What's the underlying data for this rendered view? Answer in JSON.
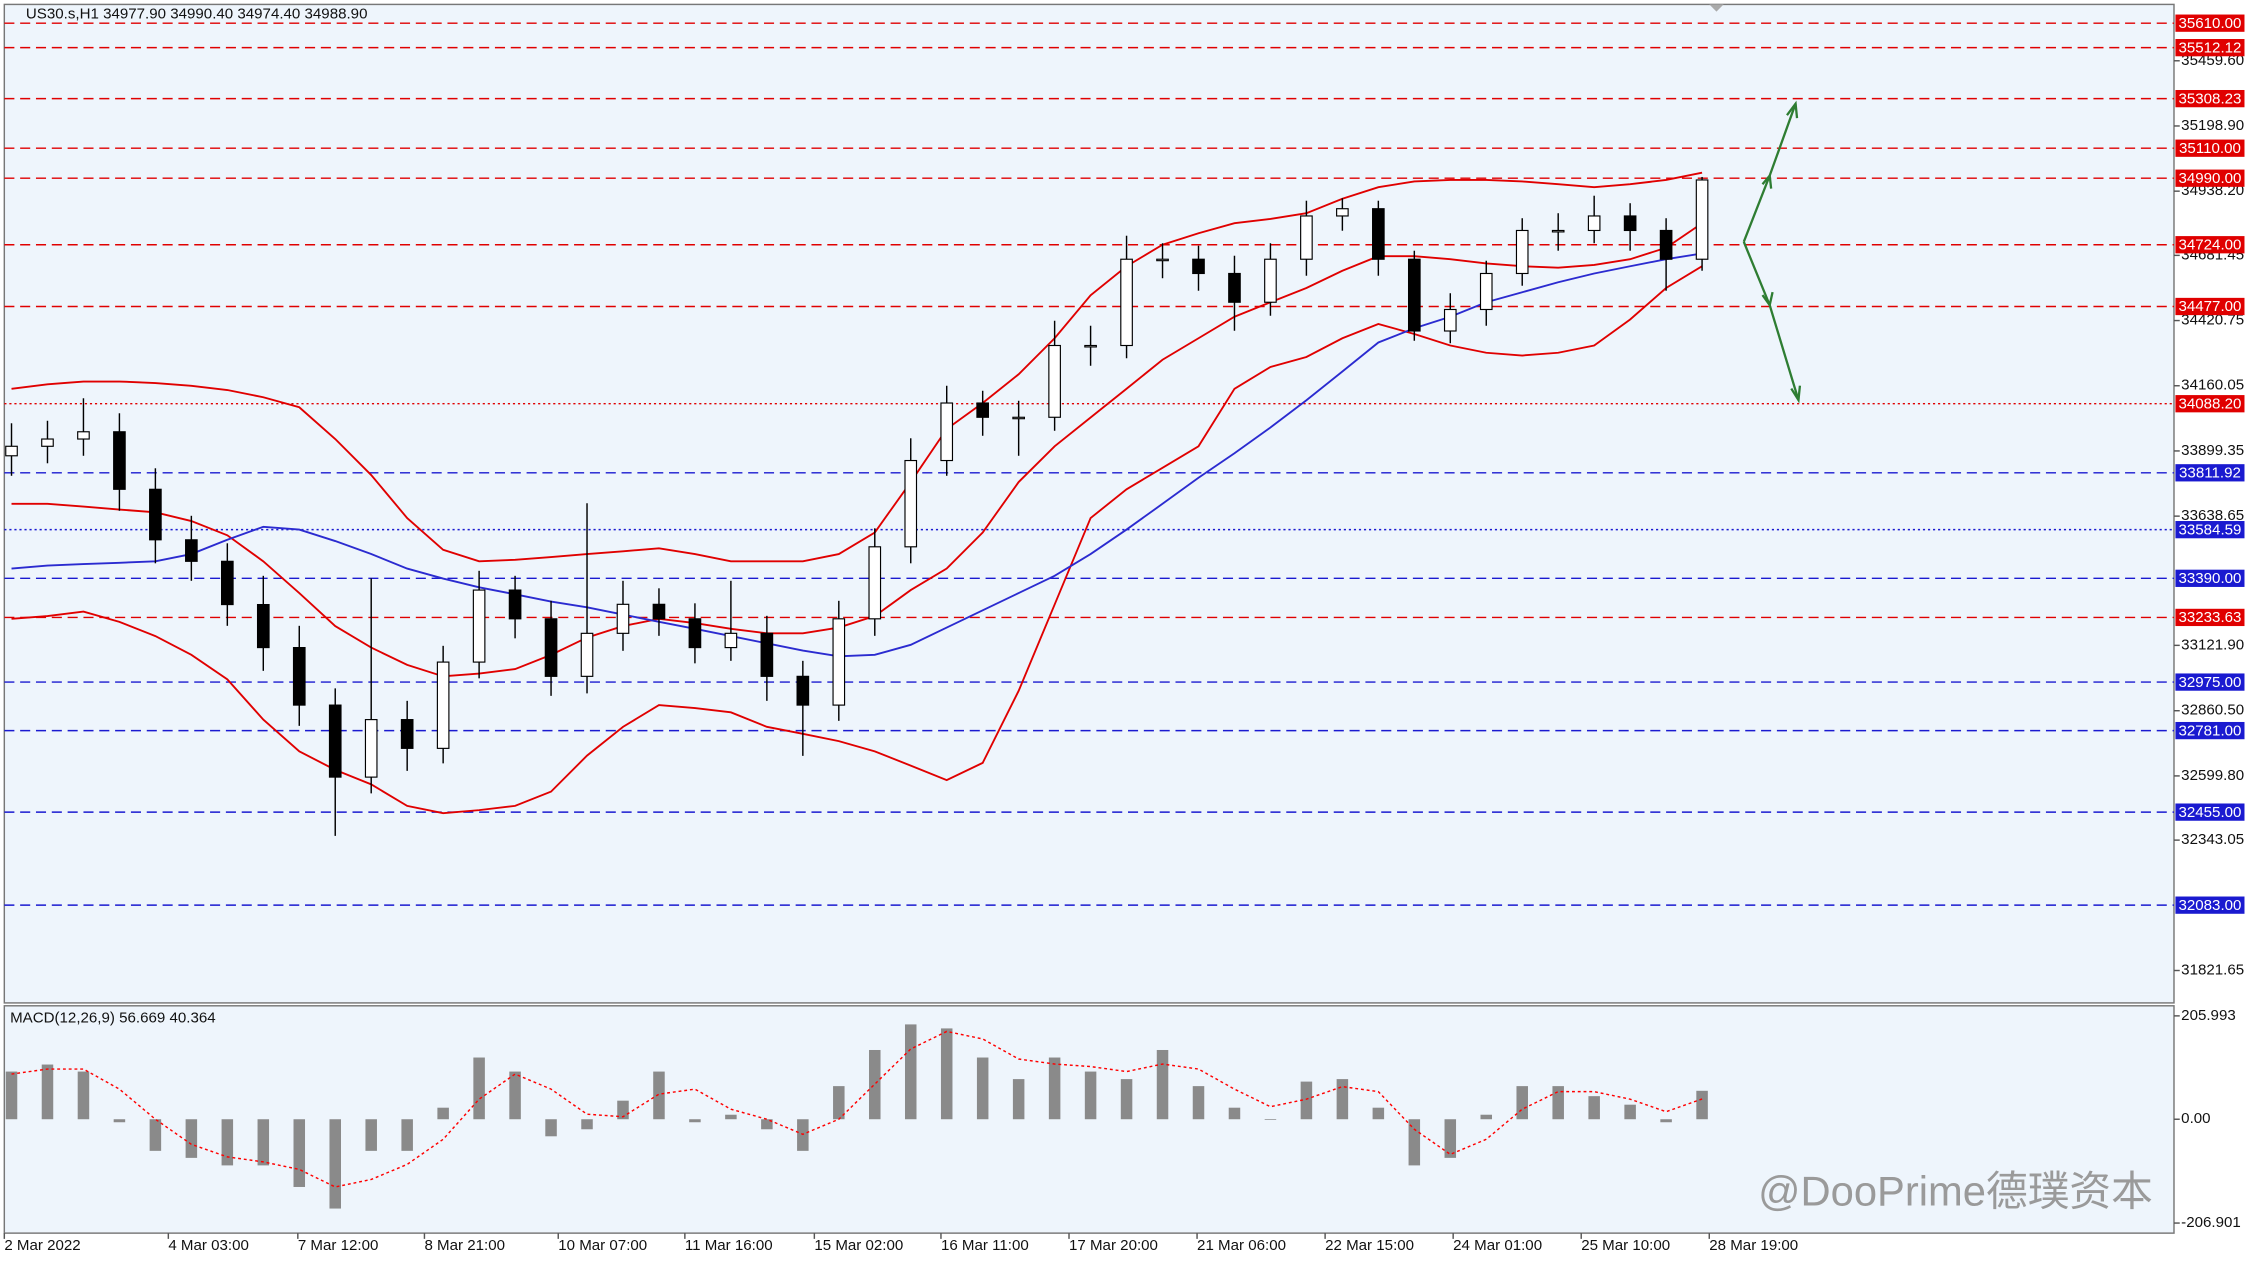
{
  "chart_data": [
    {
      "type": "candlestick",
      "title": "US30.s,H1  34977.90 34990.40 34974.40 34988.90",
      "open": [
        33880,
        33918,
        33947,
        33976,
        33746,
        33544,
        33458,
        33285,
        33113,
        32883,
        32595,
        32825,
        32710,
        33055,
        33343,
        33228,
        32998,
        33170,
        33286,
        33228,
        33113,
        33170,
        32998,
        32883,
        33228,
        33516,
        33861,
        34091,
        34034,
        34034,
        34321,
        34321,
        34666,
        34666,
        34609,
        34494,
        34666,
        34839,
        34868,
        34666,
        34379,
        34465,
        34609,
        34781,
        34781,
        34839,
        34781,
        34666
      ],
      "high": [
        34010,
        34020,
        34110,
        34050,
        33830,
        33640,
        33530,
        33400,
        33200,
        32950,
        33390,
        32900,
        33120,
        33420,
        33400,
        33300,
        33690,
        33380,
        33350,
        33290,
        33380,
        33240,
        33060,
        33300,
        33590,
        33950,
        34160,
        34140,
        34100,
        34420,
        34400,
        34760,
        34730,
        34720,
        34680,
        34730,
        34900,
        34910,
        34900,
        34700,
        34530,
        34660,
        34830,
        34850,
        34920,
        34890,
        34830,
        34995
      ],
      "low": [
        33800,
        33850,
        33880,
        33660,
        33450,
        33380,
        33200,
        33020,
        32800,
        32360,
        32530,
        32620,
        32650,
        32990,
        33150,
        32920,
        32930,
        33100,
        33160,
        33050,
        33060,
        32900,
        32680,
        32820,
        33160,
        33450,
        33800,
        33960,
        33880,
        33980,
        34240,
        34270,
        34590,
        34540,
        34380,
        34440,
        34600,
        34780,
        34600,
        34340,
        34330,
        34400,
        34560,
        34700,
        34730,
        34700,
        34540,
        34620
      ],
      "close": [
        33918,
        33947,
        33976,
        33746,
        33544,
        33458,
        33285,
        33113,
        32883,
        32595,
        32825,
        32710,
        33055,
        33343,
        33228,
        32998,
        33170,
        33286,
        33228,
        33113,
        33170,
        32998,
        32883,
        33228,
        33516,
        33861,
        34091,
        34034,
        34034,
        34321,
        34321,
        34666,
        34666,
        34609,
        34494,
        34666,
        34839,
        34868,
        34666,
        34379,
        34465,
        34609,
        34781,
        34781,
        34839,
        34781,
        34666,
        34983
      ],
      "up_color": "#ffffff",
      "down_color": "#000000",
      "series": [
        {
          "color": "#e00000",
          "values": [
            34148,
            34166,
            34177,
            34177,
            34171,
            34160,
            34143,
            34114,
            34074,
            33947,
            33803,
            33631,
            33504,
            33458,
            33464,
            33475,
            33487,
            33498,
            33510,
            33487,
            33458,
            33458,
            33458,
            33487,
            33573,
            33775,
            33987,
            34091,
            34206,
            34350,
            34522,
            34638,
            34724,
            34770,
            34810,
            34827,
            34850,
            34908,
            34954,
            34977,
            34983,
            34983,
            34977,
            34966,
            34954,
            34966,
            34983,
            35012
          ]
        },
        {
          "color": "#e00000",
          "values": [
            33688,
            33688,
            33677,
            33665,
            33654,
            33619,
            33562,
            33458,
            33331,
            33199,
            33113,
            33044,
            32998,
            33009,
            33027,
            33084,
            33153,
            33199,
            33228,
            33211,
            33188,
            33170,
            33170,
            33193,
            33239,
            33343,
            33429,
            33573,
            33775,
            33918,
            34033,
            34148,
            34264,
            34350,
            34436,
            34494,
            34551,
            34620,
            34678,
            34678,
            34666,
            34649,
            34638,
            34632,
            34643,
            34666,
            34712,
            34810
          ]
        },
        {
          "color": "#e00000",
          "values": [
            33228,
            33239,
            33257,
            33216,
            33159,
            33084,
            32986,
            32825,
            32698,
            32624,
            32566,
            32480,
            32451,
            32463,
            32480,
            32537,
            32681,
            32796,
            32883,
            32871,
            32854,
            32796,
            32768,
            32739,
            32698,
            32641,
            32583,
            32652,
            32940,
            33285,
            33631,
            33746,
            33832,
            33918,
            34148,
            34235,
            34275,
            34350,
            34407,
            34367,
            34321,
            34292,
            34281,
            34292,
            34321,
            34425,
            34551,
            34638
          ]
        },
        {
          "color": "#2b2bd0",
          "values": [
            33429,
            33441,
            33447,
            33452,
            33458,
            33487,
            33544,
            33596,
            33585,
            33539,
            33487,
            33429,
            33389,
            33354,
            33326,
            33297,
            33274,
            33245,
            33216,
            33188,
            33159,
            33130,
            33101,
            33078,
            33084,
            33124,
            33193,
            33262,
            33331,
            33400,
            33487,
            33585,
            33688,
            33792,
            33890,
            33993,
            34102,
            34217,
            34333,
            34390,
            34436,
            34494,
            34534,
            34574,
            34609,
            34638,
            34666,
            34689
          ]
        }
      ],
      "ylim": [
        31692,
        35685
      ],
      "yticks": [
        {
          "value": 35459.6,
          "label": "35459.60"
        },
        {
          "value": 35198.9,
          "label": "35198.90"
        },
        {
          "value": 34938.2,
          "label": "34938.20"
        },
        {
          "value": 34681.45,
          "label": "34681.45"
        },
        {
          "value": 34420.75,
          "label": "34420.75"
        },
        {
          "value": 34160.05,
          "label": "34160.05"
        },
        {
          "value": 33899.35,
          "label": "33899.35"
        },
        {
          "value": 33638.65,
          "label": "33638.65"
        },
        {
          "value": 33121.9,
          "label": "33121.90"
        },
        {
          "value": 32860.5,
          "label": "32860.50"
        },
        {
          "value": 32599.8,
          "label": "32599.80"
        },
        {
          "value": 32343.05,
          "label": "32343.05"
        },
        {
          "value": 31821.65,
          "label": "31821.65"
        }
      ],
      "xlim": [
        -0.2,
        60.12
      ],
      "xticks": [
        {
          "value": -0.2,
          "label": "2 Mar 2022"
        },
        {
          "value": 4.36,
          "label": "4 Mar 03:00"
        },
        {
          "value": 7.96,
          "label": "7 Mar 12:00"
        },
        {
          "value": 11.48,
          "label": "8 Mar 21:00"
        },
        {
          "value": 15.2,
          "label": "10 Mar 07:00"
        },
        {
          "value": 18.72,
          "label": "11 Mar 16:00"
        },
        {
          "value": 22.32,
          "label": "15 Mar 02:00"
        },
        {
          "value": 25.84,
          "label": "16 Mar 11:00"
        },
        {
          "value": 29.4,
          "label": "17 Mar 20:00"
        },
        {
          "value": 32.96,
          "label": "21 Mar 06:00"
        },
        {
          "value": 36.52,
          "label": "22 Mar 15:00"
        },
        {
          "value": 40.08,
          "label": "24 Mar 01:00"
        },
        {
          "value": 43.64,
          "label": "25 Mar 10:00"
        },
        {
          "value": 47.2,
          "label": "28 Mar 19:00"
        }
      ],
      "levels": [
        {
          "value": 35610,
          "label": "35610.00",
          "color": "#e00000",
          "style": "dashed"
        },
        {
          "value": 35512.12,
          "label": "35512.12",
          "color": "#e00000",
          "style": "dashed"
        },
        {
          "value": 35308.23,
          "label": "35308.23",
          "color": "#e00000",
          "style": "dashed"
        },
        {
          "value": 35110,
          "label": "35110.00",
          "color": "#e00000",
          "style": "dashed"
        },
        {
          "value": 34990,
          "label": "34990.00",
          "color": "#e00000",
          "style": "dashed"
        },
        {
          "value": 34724,
          "label": "34724.00",
          "color": "#e00000",
          "style": "dashed"
        },
        {
          "value": 34477,
          "label": "34477.00",
          "color": "#e00000",
          "style": "dashed"
        },
        {
          "value": 34088.2,
          "label": "34088.20",
          "color": "#e00000",
          "style": "dotted"
        },
        {
          "value": 33811.92,
          "label": "33811.92",
          "color": "#1a1ad0",
          "style": "dashed"
        },
        {
          "value": 33584.59,
          "label": "33584.59",
          "color": "#1a1ad0",
          "style": "dotted"
        },
        {
          "value": 33390,
          "label": "33390.00",
          "color": "#1a1ad0",
          "style": "dashed"
        },
        {
          "value": 33233.63,
          "label": "33233.63",
          "color": "#e00000",
          "style": "dashed"
        },
        {
          "value": 32975,
          "label": "32975.00",
          "color": "#1a1ad0",
          "style": "dashed"
        },
        {
          "value": 32781,
          "label": "32781.00",
          "color": "#1a1ad0",
          "style": "dashed"
        },
        {
          "value": 32455,
          "label": "32455.00",
          "color": "#1a1ad0",
          "style": "dashed"
        },
        {
          "value": 32083,
          "label": "32083.00",
          "color": "#1a1ad0",
          "style": "dashed"
        }
      ],
      "watermark": "@DooPrime德璞资本"
    },
    {
      "type": "bar",
      "title": "MACD(12,26,9) 56.669 40.364",
      "color": "#8a8a8a",
      "values": [
        95,
        109,
        95,
        -6,
        -63,
        -77,
        -92,
        -92,
        -135,
        -178,
        -63,
        -63,
        23,
        123,
        95,
        -34,
        -20,
        37,
        95,
        -6,
        9,
        -20,
        -63,
        66,
        138,
        189,
        181,
        123,
        80,
        123,
        95,
        80,
        138,
        66,
        23,
        0,
        75,
        80,
        23,
        -92,
        -77,
        9,
        66,
        66,
        46,
        29,
        -6,
        56.669
      ],
      "series": [
        {
          "color": "#ff0000",
          "values": [
            90,
            100,
            100,
            60,
            0,
            -50,
            -75,
            -85,
            -100,
            -135,
            -120,
            -90,
            -40,
            40,
            90,
            60,
            10,
            5,
            50,
            60,
            20,
            0,
            -30,
            0,
            70,
            140,
            175,
            160,
            120,
            110,
            105,
            95,
            110,
            100,
            60,
            25,
            40,
            65,
            55,
            -20,
            -70,
            -40,
            20,
            55,
            55,
            40,
            15,
            40.364
          ]
        }
      ],
      "ylim": [
        -226.97,
        226.07
      ],
      "yticks": [
        205.993,
        {
          "value": 0,
          "label": "0.00"
        },
        -206.901
      ],
      "xlim": [
        -0.2,
        60.12
      ]
    }
  ]
}
